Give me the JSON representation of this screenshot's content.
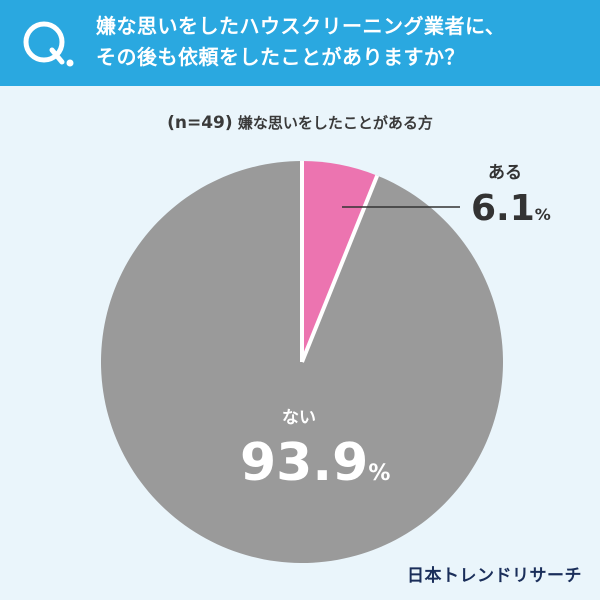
{
  "header": {
    "q_mark": "Q.",
    "question_lines": [
      "嫌な思いをしたハウスクリーニング業者に、",
      "その後も依頼をしたことがありますか？"
    ]
  },
  "subtitle": {
    "sample": "(n=49)",
    "text": "嫌な思いをしたことがある方"
  },
  "chart_data": {
    "type": "pie",
    "slices": [
      {
        "label": "ある",
        "value": 6.1,
        "color": "#ec74b0"
      },
      {
        "label": "ない",
        "value": 93.9,
        "color": "#9a9a9a"
      }
    ],
    "unit": "%",
    "start_angle_deg": 0,
    "direction": "clockwise"
  },
  "labels": {
    "yes_label": "ある",
    "yes_value": "6.1",
    "no_label": "ない",
    "no_value": "93.9",
    "percent_sign": "%"
  },
  "brand": "日本トレンドリサーチ",
  "colors": {
    "header_bg": "#2aa8e0",
    "page_bg": "#eaf5fb",
    "pink": "#ec74b0",
    "gray": "#9a9a9a"
  }
}
